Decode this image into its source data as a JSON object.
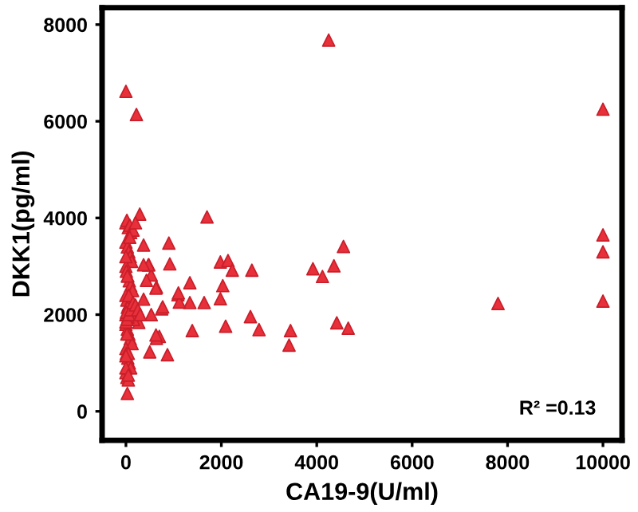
{
  "chart_data": {
    "type": "scatter",
    "xlabel": "CA19-9(U/ml)",
    "ylabel": "DKK1(pg/ml)",
    "annotations": [
      "R² =0.13"
    ],
    "marker": "triangle",
    "grid": false,
    "xlim": [
      -500,
      10400
    ],
    "ylim": [
      -600,
      8350
    ],
    "xticks": [
      0,
      2000,
      4000,
      6000,
      8000,
      10000
    ],
    "yticks": [
      0,
      2000,
      4000,
      6000,
      8000
    ],
    "series": [
      {
        "color": "#e8303a",
        "x": [
          4250,
          0,
          220,
          10000,
          290,
          1700,
          10000,
          10000,
          10000,
          7800,
          4560,
          4360,
          3920,
          4120,
          2640,
          1980,
          2140,
          2230,
          2030,
          1980,
          1340,
          1640,
          1340,
          1090,
          1120,
          920,
          640,
          480,
          530,
          750,
          700,
          640,
          500,
          870,
          1390,
          2090,
          2610,
          2790,
          3450,
          3420,
          4420,
          4660,
          30,
          900,
          470,
          1100,
          770,
          630,
          430,
          630,
          370,
          530,
          270,
          370,
          370,
          0,
          20,
          50,
          80,
          100,
          150,
          200,
          0,
          30,
          60,
          90,
          120,
          0,
          10,
          40,
          70,
          100,
          140,
          0,
          20,
          50,
          160,
          0,
          30,
          60,
          90,
          130,
          0,
          10,
          40,
          70,
          100,
          0,
          20,
          50,
          80,
          0,
          30,
          60,
          0,
          20,
          50,
          0,
          30,
          10,
          40,
          0,
          20,
          60,
          100,
          150,
          200,
          250,
          300,
          0,
          50
        ],
        "values": [
          7680,
          6620,
          6140,
          6250,
          4080,
          4020,
          3650,
          3300,
          2280,
          2230,
          3410,
          3010,
          2950,
          2790,
          2920,
          3090,
          3120,
          2920,
          2600,
          2330,
          2660,
          2250,
          2250,
          2410,
          2260,
          3050,
          2570,
          3030,
          2820,
          2120,
          1550,
          1510,
          1230,
          1170,
          1670,
          1760,
          1960,
          1690,
          1670,
          1370,
          1830,
          1720,
          370,
          3480,
          3030,
          2450,
          2160,
          1580,
          2710,
          2550,
          2320,
          2000,
          1840,
          3440,
          3030,
          3900,
          3950,
          3800,
          3850,
          3700,
          3750,
          3900,
          3500,
          3400,
          3300,
          3200,
          3100,
          3000,
          2900,
          2800,
          2700,
          2600,
          2500,
          2400,
          2300,
          2200,
          1900,
          1800,
          1700,
          1600,
          1500,
          1400,
          1300,
          1200,
          1100,
          1000,
          900,
          800,
          700,
          650,
          3600,
          3200,
          2800,
          2400,
          2000,
          1600,
          1200,
          900,
          2150,
          2050,
          1950,
          1850,
          1900,
          2000,
          2100,
          2250,
          2200,
          2100,
          2000,
          1150,
          750
        ]
      }
    ]
  }
}
